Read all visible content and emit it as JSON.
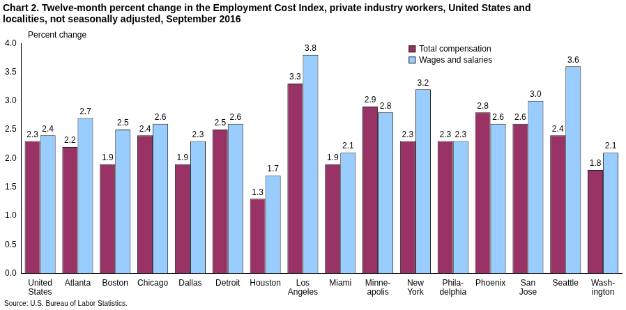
{
  "chart_data": {
    "type": "bar",
    "title": "Chart 2. Twelve-month percent change in the Employment Cost Index, private industry workers, United States and\nlocalities, not seasonally adjusted, September 2016",
    "y_label": "Percent change",
    "source": "Source: U.S. Bureau of Labor Statistics.",
    "categories": [
      "United\nStates",
      "Atlanta",
      "Boston",
      "Chicago",
      "Dallas",
      "Detroit",
      "Houston",
      "Los\nAngeles",
      "Miami",
      "Minne-\napolis",
      "New\nYork",
      "Phila-\ndelphia",
      "Phoenix",
      "San\nJose",
      "Seattle",
      "Wash-\nington"
    ],
    "series": [
      {
        "name": "Total compensation",
        "color": "#993366",
        "values": [
          2.3,
          2.2,
          1.9,
          2.4,
          1.9,
          2.5,
          1.3,
          3.3,
          1.9,
          2.9,
          2.3,
          2.3,
          2.8,
          2.6,
          2.4,
          1.8
        ]
      },
      {
        "name": "Wages and salaries",
        "color": "#99ccff",
        "values": [
          2.4,
          2.7,
          2.5,
          2.6,
          2.3,
          2.6,
          1.7,
          3.8,
          2.1,
          2.8,
          3.2,
          2.3,
          2.6,
          3.0,
          3.6,
          2.1
        ],
        "value_labels": [
          "2.4",
          "2.7",
          "2.5",
          "2.6",
          "2.3",
          "2.6",
          "1.7",
          "3.8",
          "2.1",
          "2.8",
          "3.2",
          "2.3",
          "2.6",
          "3.0",
          "3.6",
          "2.1"
        ]
      }
    ],
    "ylim": [
      0,
      4
    ],
    "yticks": [
      {
        "value": 0,
        "label": "0.0"
      },
      0.5,
      {
        "value": 1,
        "label": "1.0"
      },
      1.5,
      {
        "value": 2,
        "label": "2.0"
      },
      2.5,
      {
        "value": 3,
        "label": "3.0"
      },
      3.5,
      {
        "value": 4,
        "label": "4.0"
      }
    ],
    "grid": false,
    "legend": "upper right",
    "data_labels": true
  }
}
